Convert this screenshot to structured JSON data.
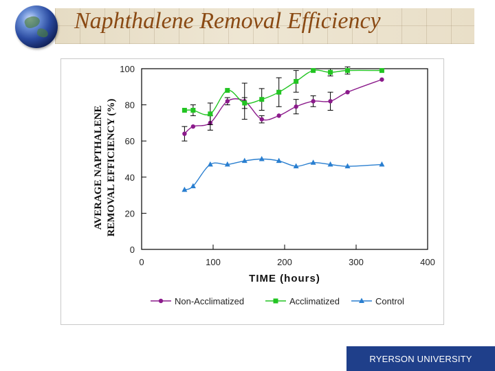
{
  "slide": {
    "title": "Naphthalene Removal Efficiency",
    "footer_logo": "RYERSON UNIVERSITY"
  },
  "colors": {
    "title": "#8a4a14",
    "non_acclimatized": "#8b1a8b",
    "acclimatized": "#22c422",
    "control": "#2a7fd0",
    "footer_bg": "#1f3f8a"
  },
  "icons": [
    "globe-icon"
  ],
  "chart_data": {
    "type": "line",
    "xlabel": "TIME (hours)",
    "ylabel": [
      "AVERAGE NAPTHALENE",
      "REMOVAL EFFICIENCY (%)"
    ],
    "xlim": [
      0,
      400
    ],
    "ylim": [
      0,
      100
    ],
    "xticks": [
      0,
      100,
      200,
      300,
      400
    ],
    "yticks": [
      0,
      20,
      40,
      60,
      80,
      100
    ],
    "grid": false,
    "legend_position": "bottom",
    "series": [
      {
        "name": "Non-Acclimatized",
        "marker": "circle",
        "x": [
          60,
          72,
          96,
          120,
          144,
          168,
          192,
          216,
          240,
          264,
          288,
          336
        ],
        "y": [
          64,
          68,
          70,
          82,
          82,
          72,
          74,
          79,
          82,
          82,
          87,
          94
        ],
        "err": [
          4,
          0,
          4,
          2,
          10,
          2,
          0,
          4,
          3,
          5,
          0,
          0
        ]
      },
      {
        "name": "Acclimatized",
        "marker": "square",
        "x": [
          60,
          72,
          96,
          120,
          144,
          168,
          192,
          216,
          240,
          264,
          288,
          336
        ],
        "y": [
          77,
          77,
          75,
          88,
          81,
          83,
          87,
          93,
          99,
          98,
          99,
          99
        ],
        "err": [
          0,
          3,
          6,
          0,
          3,
          6,
          8,
          6,
          0,
          2,
          2,
          0
        ]
      },
      {
        "name": "Control",
        "marker": "triangle",
        "x": [
          60,
          72,
          96,
          120,
          144,
          168,
          192,
          216,
          240,
          264,
          288,
          336
        ],
        "y": [
          33,
          35,
          47,
          47,
          49,
          50,
          49,
          46,
          48,
          47,
          46,
          47
        ],
        "err": [
          0,
          0,
          0,
          0,
          0,
          0,
          0,
          0,
          0,
          0,
          0,
          0
        ]
      }
    ]
  }
}
